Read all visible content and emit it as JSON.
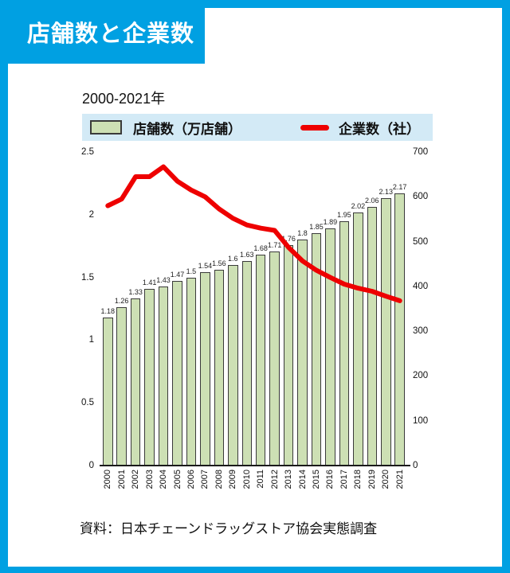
{
  "header": {
    "title": "店舗数と企業数"
  },
  "chart": {
    "subtitle": "2000-2021年",
    "legend": {
      "bars": "店舗数（万店舗）",
      "line": "企業数（社）"
    },
    "source": "資料：日本チェーンドラッグストア協会実態調査"
  },
  "colors": {
    "accent_blue": "#00a0e2",
    "legend_bg": "#d3eaf6",
    "bar_fill": "#cde0b4",
    "line_red": "#ee0000"
  },
  "chart_data": {
    "type": "bar",
    "subtype": "bar-with-line-overlay",
    "title": "店舗数と企業数",
    "subtitle": "2000-2021年",
    "categories": [
      "2000",
      "2001",
      "2002",
      "2003",
      "2004",
      "2005",
      "2006",
      "2007",
      "2008",
      "2009",
      "2010",
      "2011",
      "2012",
      "2013",
      "2014",
      "2015",
      "2016",
      "2017",
      "2018",
      "2019",
      "2020",
      "2021"
    ],
    "series": [
      {
        "name": "店舗数（万店舗）",
        "type": "bar",
        "axis": "left",
        "values": [
          1.18,
          1.26,
          1.33,
          1.41,
          1.43,
          1.47,
          1.5,
          1.54,
          1.56,
          1.6,
          1.63,
          1.68,
          1.71,
          1.76,
          1.8,
          1.85,
          1.89,
          1.95,
          2.02,
          2.06,
          2.13,
          2.17
        ],
        "labels": [
          "1.18",
          "1.26",
          "1.33",
          "1.41",
          "1.43",
          "1.47",
          "1.5",
          "1.54",
          "1.56",
          "1.6",
          "1.63",
          "1.68",
          "1.71",
          "1.76",
          "1.8",
          "1.85",
          "1.89",
          "1.95",
          "2.02",
          "2.06",
          "2.13",
          "2.17"
        ]
      },
      {
        "name": "企業数（社）",
        "type": "line",
        "axis": "right",
        "values": [
          580,
          595,
          645,
          645,
          667,
          635,
          615,
          600,
          573,
          552,
          537,
          530,
          525,
          487,
          457,
          436,
          420,
          405,
          396,
          389,
          378,
          368
        ]
      }
    ],
    "left_axis": {
      "min": 0,
      "max": 2.5,
      "tick_labels": [
        "2.5",
        "2",
        "1.5",
        "1",
        "0.5",
        "0"
      ]
    },
    "right_axis": {
      "min": 0,
      "max": 700,
      "tick_labels": [
        "700",
        "600",
        "500",
        "400",
        "300",
        "200",
        "100",
        "0"
      ]
    },
    "grid": false,
    "legend_position": "top",
    "source": "資料：日本チェーンドラッグストア協会実態調査"
  }
}
